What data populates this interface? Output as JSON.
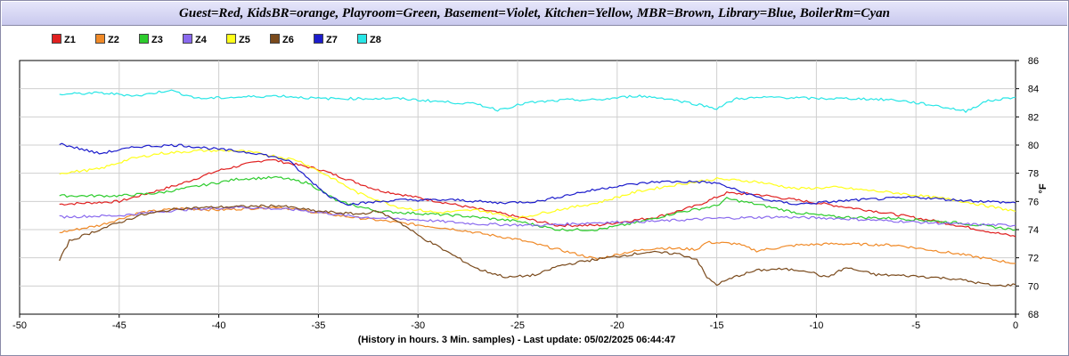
{
  "chart_data": {
    "type": "line",
    "title": "Guest=Red, KidsBR=orange, Playroom=Green, Basement=Violet, Kitchen=Yellow, MBR=Brown, Library=Blue, BoilerRm=Cyan",
    "xlabel": "(History in hours. 3 Min. samples) - Last update: 05/02/2025 06:44:47",
    "ylabel": "°F",
    "xlim": [
      -50,
      0
    ],
    "ylim": [
      68,
      86
    ],
    "x_ticks": [
      "-50",
      "-45",
      "-40",
      "-35",
      "-30",
      "-25",
      "-20",
      "-15",
      "-10",
      "-5",
      "0"
    ],
    "y_ticks": [
      "68",
      "70",
      "72",
      "74",
      "76",
      "78",
      "80",
      "82",
      "84",
      "86"
    ],
    "grid": true,
    "legend_position": "top-left",
    "series": [
      {
        "name": "Z1",
        "color": "#e02020",
        "points": [
          [
            -48,
            75.8
          ],
          [
            -45,
            76.0
          ],
          [
            -42,
            77.2
          ],
          [
            -40,
            78.2
          ],
          [
            -37.5,
            79.0
          ],
          [
            -35,
            78.3
          ],
          [
            -32,
            76.8
          ],
          [
            -29,
            76.0
          ],
          [
            -26,
            75.2
          ],
          [
            -23,
            74.3
          ],
          [
            -21,
            74.3
          ],
          [
            -18,
            74.9
          ],
          [
            -16,
            75.7
          ],
          [
            -14.5,
            76.6
          ],
          [
            -13,
            76.5
          ],
          [
            -10,
            75.9
          ],
          [
            -7,
            75.3
          ],
          [
            -4,
            74.6
          ],
          [
            0,
            73.5
          ]
        ]
      },
      {
        "name": "Z2",
        "color": "#f08a28",
        "points": [
          [
            -48,
            73.8
          ],
          [
            -46,
            74.3
          ],
          [
            -44,
            75.2
          ],
          [
            -42,
            75.5
          ],
          [
            -40,
            75.4
          ],
          [
            -37,
            75.6
          ],
          [
            -34,
            75.0
          ],
          [
            -31,
            74.5
          ],
          [
            -28,
            74.0
          ],
          [
            -25,
            73.3
          ],
          [
            -23,
            72.6
          ],
          [
            -21,
            71.9
          ],
          [
            -19.5,
            72.4
          ],
          [
            -18,
            72.7
          ],
          [
            -16,
            72.6
          ],
          [
            -15.5,
            73.1
          ],
          [
            -14,
            73.0
          ],
          [
            -13,
            72.5
          ],
          [
            -11,
            72.9
          ],
          [
            -9,
            73.0
          ],
          [
            -6,
            72.9
          ],
          [
            -3,
            72.3
          ],
          [
            0,
            71.6
          ]
        ]
      },
      {
        "name": "Z3",
        "color": "#2ecc2e",
        "points": [
          [
            -48,
            76.4
          ],
          [
            -45,
            76.4
          ],
          [
            -43,
            76.6
          ],
          [
            -41,
            77.1
          ],
          [
            -39,
            77.6
          ],
          [
            -37,
            77.7
          ],
          [
            -35.5,
            77.3
          ],
          [
            -34,
            76.0
          ],
          [
            -32,
            75.3
          ],
          [
            -28,
            75.0
          ],
          [
            -25,
            74.6
          ],
          [
            -23,
            74.0
          ],
          [
            -21,
            74.0
          ],
          [
            -19,
            74.5
          ],
          [
            -17,
            75.2
          ],
          [
            -15,
            75.7
          ],
          [
            -14.5,
            76.2
          ],
          [
            -13,
            75.8
          ],
          [
            -11,
            75.2
          ],
          [
            -9,
            74.9
          ],
          [
            -6,
            74.8
          ],
          [
            -3,
            74.5
          ],
          [
            0,
            74.0
          ]
        ]
      },
      {
        "name": "Z4",
        "color": "#8a6aee",
        "points": [
          [
            -48,
            74.9
          ],
          [
            -45,
            75.0
          ],
          [
            -42,
            75.4
          ],
          [
            -39,
            75.6
          ],
          [
            -36,
            75.4
          ],
          [
            -33,
            74.9
          ],
          [
            -30,
            74.7
          ],
          [
            -27,
            74.4
          ],
          [
            -24,
            74.3
          ],
          [
            -21,
            74.5
          ],
          [
            -18,
            74.6
          ],
          [
            -15,
            74.8
          ],
          [
            -12,
            74.9
          ],
          [
            -9,
            74.8
          ],
          [
            -6,
            74.6
          ],
          [
            -3,
            74.4
          ],
          [
            0,
            74.3
          ]
        ]
      },
      {
        "name": "Z5",
        "color": "#ffff1a",
        "points": [
          [
            -48,
            78.0
          ],
          [
            -46,
            78.3
          ],
          [
            -44.5,
            79.0
          ],
          [
            -43,
            79.4
          ],
          [
            -41,
            79.6
          ],
          [
            -39,
            79.6
          ],
          [
            -37.5,
            79.3
          ],
          [
            -36,
            78.9
          ],
          [
            -34.5,
            77.8
          ],
          [
            -33,
            76.6
          ],
          [
            -31,
            75.6
          ],
          [
            -29,
            75.2
          ],
          [
            -27,
            75.4
          ],
          [
            -25,
            74.8
          ],
          [
            -23,
            75.4
          ],
          [
            -21,
            75.9
          ],
          [
            -19,
            76.7
          ],
          [
            -17,
            77.2
          ],
          [
            -15,
            77.6
          ],
          [
            -13,
            77.4
          ],
          [
            -11,
            76.9
          ],
          [
            -9,
            77.0
          ],
          [
            -6,
            76.6
          ],
          [
            -3,
            76.1
          ],
          [
            0,
            75.3
          ]
        ]
      },
      {
        "name": "Z6",
        "color": "#7a4a1c",
        "points": [
          [
            -48,
            71.8
          ],
          [
            -47.5,
            73.2
          ],
          [
            -46,
            74.0
          ],
          [
            -44,
            75.0
          ],
          [
            -42,
            75.5
          ],
          [
            -40,
            75.6
          ],
          [
            -37,
            75.7
          ],
          [
            -35,
            75.3
          ],
          [
            -33,
            75.1
          ],
          [
            -32,
            75.3
          ],
          [
            -31,
            74.6
          ],
          [
            -30,
            73.6
          ],
          [
            -28.5,
            72.4
          ],
          [
            -27,
            71.2
          ],
          [
            -25.5,
            70.6
          ],
          [
            -24,
            70.8
          ],
          [
            -23,
            71.4
          ],
          [
            -21.5,
            71.8
          ],
          [
            -20,
            72.1
          ],
          [
            -18.5,
            72.4
          ],
          [
            -17,
            72.3
          ],
          [
            -16,
            71.9
          ],
          [
            -15.5,
            70.6
          ],
          [
            -15,
            70.1
          ],
          [
            -14,
            70.7
          ],
          [
            -13,
            71.1
          ],
          [
            -12,
            71.2
          ],
          [
            -10.5,
            71.1
          ],
          [
            -9.5,
            70.6
          ],
          [
            -8.5,
            71.3
          ],
          [
            -7,
            70.8
          ],
          [
            -5,
            70.7
          ],
          [
            -3,
            70.5
          ],
          [
            -1,
            70.0
          ],
          [
            0,
            70.1
          ]
        ]
      },
      {
        "name": "Z7",
        "color": "#1c1ccc",
        "points": [
          [
            -48,
            80.1
          ],
          [
            -46,
            79.4
          ],
          [
            -44,
            79.9
          ],
          [
            -42,
            80.0
          ],
          [
            -40,
            79.7
          ],
          [
            -38,
            79.4
          ],
          [
            -36.5,
            78.9
          ],
          [
            -35.5,
            77.6
          ],
          [
            -34.5,
            76.4
          ],
          [
            -33.5,
            75.8
          ],
          [
            -31,
            76.1
          ],
          [
            -28,
            76.1
          ],
          [
            -26,
            75.9
          ],
          [
            -24,
            76.0
          ],
          [
            -22,
            76.6
          ],
          [
            -20,
            77.1
          ],
          [
            -18,
            77.4
          ],
          [
            -16,
            77.4
          ],
          [
            -15,
            77.3
          ],
          [
            -14,
            76.8
          ],
          [
            -12.5,
            76.1
          ],
          [
            -11,
            75.8
          ],
          [
            -8,
            76.1
          ],
          [
            -5,
            76.3
          ],
          [
            -3,
            76.1
          ],
          [
            0,
            75.9
          ]
        ]
      },
      {
        "name": "Z8",
        "color": "#28e6e6",
        "points": [
          [
            -48,
            83.6
          ],
          [
            -46,
            83.7
          ],
          [
            -44,
            83.5
          ],
          [
            -42.5,
            83.9
          ],
          [
            -41,
            83.3
          ],
          [
            -39,
            83.4
          ],
          [
            -37,
            83.5
          ],
          [
            -35,
            83.3
          ],
          [
            -33,
            83.3
          ],
          [
            -31,
            83.3
          ],
          [
            -29,
            83.1
          ],
          [
            -27,
            82.9
          ],
          [
            -26,
            82.5
          ],
          [
            -24.5,
            83.0
          ],
          [
            -22.5,
            83.2
          ],
          [
            -21,
            83.2
          ],
          [
            -19,
            83.5
          ],
          [
            -17.5,
            83.3
          ],
          [
            -16,
            82.9
          ],
          [
            -15,
            82.6
          ],
          [
            -14,
            83.3
          ],
          [
            -12,
            83.4
          ],
          [
            -10,
            83.3
          ],
          [
            -8,
            83.3
          ],
          [
            -6,
            83.2
          ],
          [
            -4,
            82.8
          ],
          [
            -2.5,
            82.4
          ],
          [
            -1.5,
            83.1
          ],
          [
            0,
            83.4
          ]
        ]
      }
    ]
  }
}
